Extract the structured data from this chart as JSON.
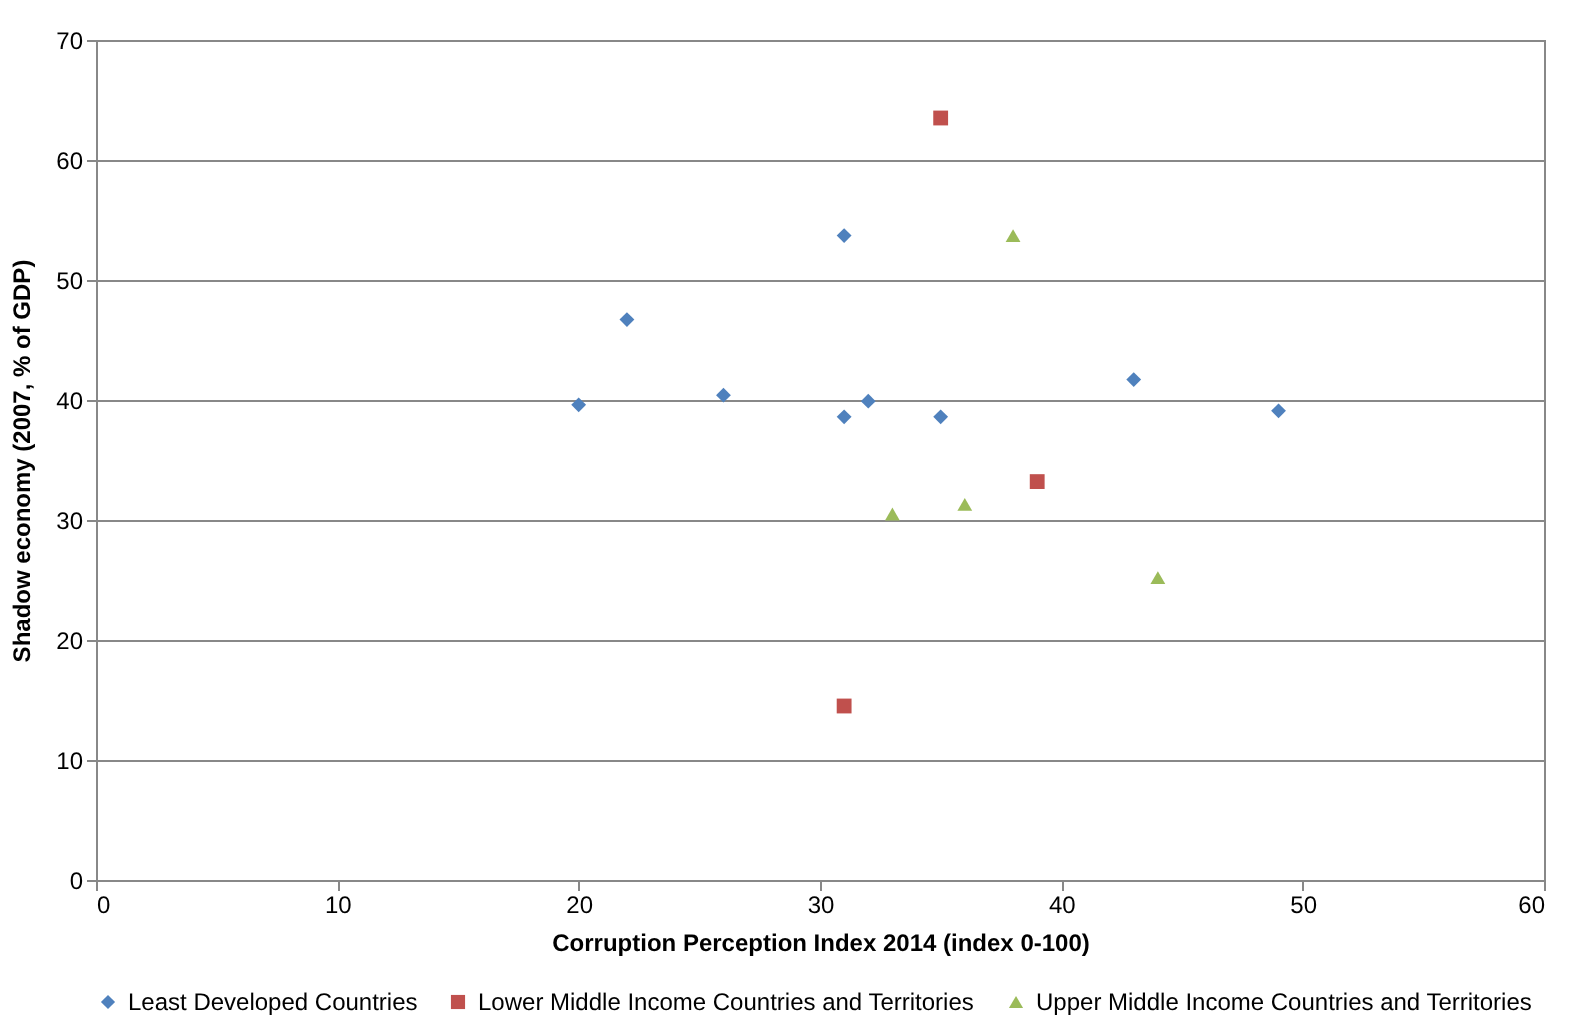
{
  "chart_data": {
    "type": "scatter",
    "xlabel": "Corruption Perception Index 2014 (index 0-100)",
    "ylabel": "Shadow economy (2007, % of GDP)",
    "xlim": [
      0,
      60
    ],
    "xticks": [
      0,
      10,
      20,
      30,
      40,
      50,
      60
    ],
    "ylim": [
      0,
      70
    ],
    "yticks": [
      0,
      10,
      20,
      30,
      40,
      50,
      60,
      70
    ],
    "grid": "y",
    "legend": "bottom",
    "series": [
      {
        "name": "Least Developed Countries",
        "color": "#4f81bd",
        "marker": "diamond",
        "x": [
          20,
          22,
          26,
          31,
          31,
          32,
          35,
          43,
          49
        ],
        "values": [
          39.6,
          46.7,
          40.4,
          53.7,
          38.6,
          39.9,
          38.6,
          41.7,
          39.1
        ]
      },
      {
        "name": "Lower Middle Income Countries and Territories",
        "color": "#c0504d",
        "marker": "square",
        "x": [
          35,
          39,
          31
        ],
        "values": [
          63.5,
          33.2,
          14.5
        ]
      },
      {
        "name": "Upper Middle Income Countries and Territories",
        "color": "#9bbb59",
        "marker": "triangle",
        "x": [
          38,
          33,
          36,
          44
        ],
        "values": [
          53.7,
          30.5,
          31.3,
          25.2
        ]
      }
    ]
  }
}
